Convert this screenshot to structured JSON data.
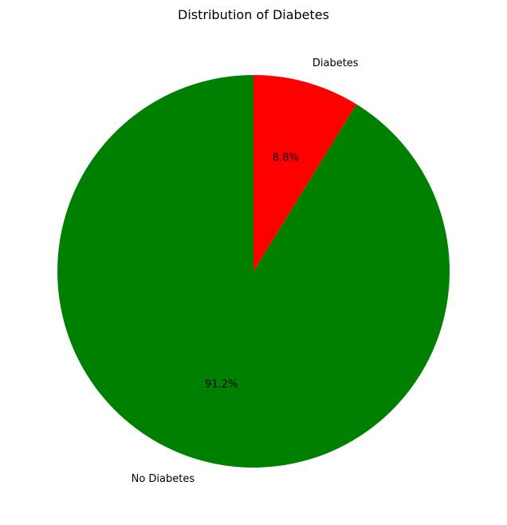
{
  "chart_data": {
    "type": "pie",
    "title": "Distribution of Diabetes",
    "start_angle": 90,
    "direction": "counterclockwise",
    "slices": [
      {
        "label": "No Diabetes",
        "value": 91.2,
        "pct_label": "91.2%",
        "color": "#008000"
      },
      {
        "label": "Diabetes",
        "value": 8.8,
        "pct_label": "8.8%",
        "color": "#ff0000"
      }
    ]
  }
}
